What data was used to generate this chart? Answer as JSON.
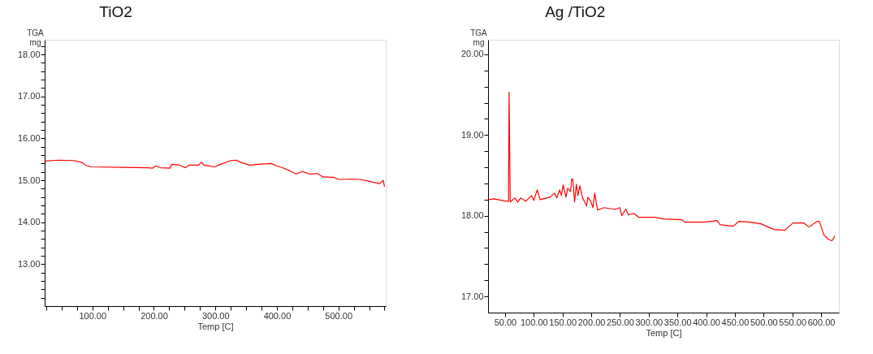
{
  "chart_data": [
    {
      "type": "line",
      "title": "TiO2",
      "xlabel": "Temp  [C]",
      "ylabel": "TGA\nmg",
      "grid": false,
      "marker": "none",
      "line_style": "solid",
      "xlim": [
        22.4,
        577
      ],
      "ylim": [
        12.0,
        18.35
      ],
      "xticks": [
        {
          "value": 25,
          "label": null
        },
        {
          "value": 50,
          "label": null
        },
        {
          "value": 75,
          "label": null
        },
        {
          "value": 100,
          "label": "100.00"
        },
        {
          "value": 125,
          "label": null
        },
        {
          "value": 150,
          "label": null
        },
        {
          "value": 175,
          "label": null
        },
        {
          "value": 200,
          "label": "200.00"
        },
        {
          "value": 225,
          "label": null
        },
        {
          "value": 250,
          "label": null
        },
        {
          "value": 275,
          "label": null
        },
        {
          "value": 300,
          "label": "300.00"
        },
        {
          "value": 325,
          "label": null
        },
        {
          "value": 350,
          "label": null
        },
        {
          "value": 375,
          "label": null
        },
        {
          "value": 400,
          "label": "400.00"
        },
        {
          "value": 425,
          "label": null
        },
        {
          "value": 450,
          "label": null
        },
        {
          "value": 475,
          "label": null
        },
        {
          "value": 500,
          "label": "500.00"
        },
        {
          "value": 525,
          "label": null
        },
        {
          "value": 550,
          "label": null
        },
        {
          "value": 575,
          "label": null
        }
      ],
      "yticks": [
        {
          "value": 12.2,
          "label": null
        },
        {
          "value": 12.4,
          "label": null
        },
        {
          "value": 12.6,
          "label": null
        },
        {
          "value": 12.8,
          "label": null
        },
        {
          "value": 13,
          "label": "13.00"
        },
        {
          "value": 13.2,
          "label": null
        },
        {
          "value": 13.4,
          "label": null
        },
        {
          "value": 13.6,
          "label": null
        },
        {
          "value": 13.8,
          "label": null
        },
        {
          "value": 14,
          "label": "14.00"
        },
        {
          "value": 14.2,
          "label": null
        },
        {
          "value": 14.4,
          "label": null
        },
        {
          "value": 14.6,
          "label": null
        },
        {
          "value": 14.8,
          "label": null
        },
        {
          "value": 15,
          "label": "15.00"
        },
        {
          "value": 15.2,
          "label": null
        },
        {
          "value": 15.4,
          "label": null
        },
        {
          "value": 15.6,
          "label": null
        },
        {
          "value": 15.8,
          "label": null
        },
        {
          "value": 16,
          "label": "16.00"
        },
        {
          "value": 16.2,
          "label": null
        },
        {
          "value": 16.4,
          "label": null
        },
        {
          "value": 16.6,
          "label": null
        },
        {
          "value": 16.8,
          "label": null
        },
        {
          "value": 17,
          "label": "17.00"
        },
        {
          "value": 17.2,
          "label": null
        },
        {
          "value": 17.4,
          "label": null
        },
        {
          "value": 17.6,
          "label": null
        },
        {
          "value": 17.8,
          "label": null
        },
        {
          "value": 18,
          "label": "18.00"
        },
        {
          "value": 18.2,
          "label": null
        }
      ],
      "series": [
        {
          "color": "#ff0000",
          "x": [
            23,
            45,
            71,
            84,
            89,
            97,
            150,
            190,
            198,
            203,
            211,
            226,
            229,
            242,
            251,
            257,
            273,
            277,
            282,
            299,
            308,
            325,
            334,
            343,
            356,
            369,
            391,
            400,
            409,
            422,
            431,
            442,
            453,
            466,
            475,
            492,
            501,
            523,
            536,
            549,
            567,
            573,
            575
          ],
          "values": [
            15.46,
            15.48,
            15.47,
            15.42,
            15.36,
            15.32,
            15.31,
            15.3,
            15.29,
            15.34,
            15.3,
            15.29,
            15.38,
            15.36,
            15.3,
            15.36,
            15.36,
            15.43,
            15.36,
            15.32,
            15.38,
            15.47,
            15.48,
            15.42,
            15.36,
            15.38,
            15.4,
            15.34,
            15.3,
            15.22,
            15.15,
            15.21,
            15.15,
            15.16,
            15.08,
            15.07,
            15.02,
            15.03,
            15.02,
            14.98,
            14.92,
            15.0,
            14.85
          ]
        }
      ]
    },
    {
      "type": "line",
      "title": "Ag /TiO2",
      "xlabel": "Temp  [C]",
      "ylabel": "TGA\nmg",
      "grid": false,
      "marker": "none",
      "line_style": "solid",
      "xlim": [
        20.4,
        631
      ],
      "ylim": [
        16.8,
        20.18
      ],
      "xticks": [
        {
          "value": 50,
          "label": "50.00"
        },
        {
          "value": 100,
          "label": "100.00"
        },
        {
          "value": 150,
          "label": "150.00"
        },
        {
          "value": 200,
          "label": "200.00"
        },
        {
          "value": 250,
          "label": "250.00"
        },
        {
          "value": 300,
          "label": "300.00"
        },
        {
          "value": 350,
          "label": "350.00"
        },
        {
          "value": 400,
          "label": "400.00"
        },
        {
          "value": 450,
          "label": "450.00"
        },
        {
          "value": 500,
          "label": "500.00"
        },
        {
          "value": 550,
          "label": "550.00"
        },
        {
          "value": 600,
          "label": "600.00"
        }
      ],
      "yticks": [
        {
          "value": 17,
          "label": "17.00"
        },
        {
          "value": 17.2,
          "label": null
        },
        {
          "value": 17.4,
          "label": null
        },
        {
          "value": 17.6,
          "label": null
        },
        {
          "value": 17.8,
          "label": null
        },
        {
          "value": 18,
          "label": "18.00"
        },
        {
          "value": 18.2,
          "label": null
        },
        {
          "value": 18.4,
          "label": null
        },
        {
          "value": 18.6,
          "label": null
        },
        {
          "value": 18.8,
          "label": null
        },
        {
          "value": 19,
          "label": "19.00"
        },
        {
          "value": 19.2,
          "label": null
        },
        {
          "value": 19.4,
          "label": null
        },
        {
          "value": 19.6,
          "label": null
        },
        {
          "value": 19.8,
          "label": null
        },
        {
          "value": 20,
          "label": "20.00"
        }
      ],
      "series": [
        {
          "color": "#ff0000",
          "x": [
            21,
            30,
            53,
            56,
            57,
            59,
            67,
            72,
            77,
            86,
            96,
            100,
            106,
            111,
            128,
            136,
            140,
            145,
            148,
            151,
            156,
            159,
            164,
            166,
            168,
            171,
            174,
            177,
            180,
            185,
            192,
            194,
            199,
            203,
            206,
            211,
            222,
            241,
            250,
            253,
            260,
            265,
            274,
            283,
            311,
            325,
            358,
            363,
            396,
            419,
            424,
            447,
            457,
            476,
            495,
            518,
            537,
            551,
            570,
            579,
            593,
            597,
            605,
            612,
            619,
            624
          ],
          "values": [
            18.2,
            18.21,
            18.18,
            18.18,
            19.53,
            18.17,
            18.22,
            18.17,
            18.22,
            18.18,
            18.25,
            18.19,
            18.32,
            18.2,
            18.23,
            18.28,
            18.22,
            18.32,
            18.25,
            18.38,
            18.23,
            18.34,
            18.3,
            18.46,
            18.44,
            18.17,
            18.39,
            18.25,
            18.37,
            18.22,
            18.12,
            18.23,
            18.18,
            18.1,
            18.28,
            18.07,
            18.1,
            18.08,
            18.1,
            18.0,
            18.08,
            18.01,
            18.03,
            17.98,
            17.98,
            17.96,
            17.95,
            17.92,
            17.92,
            17.94,
            17.89,
            17.87,
            17.93,
            17.92,
            17.9,
            17.83,
            17.82,
            17.91,
            17.91,
            17.86,
            17.93,
            17.93,
            17.76,
            17.71,
            17.69,
            17.75
          ]
        }
      ]
    }
  ]
}
